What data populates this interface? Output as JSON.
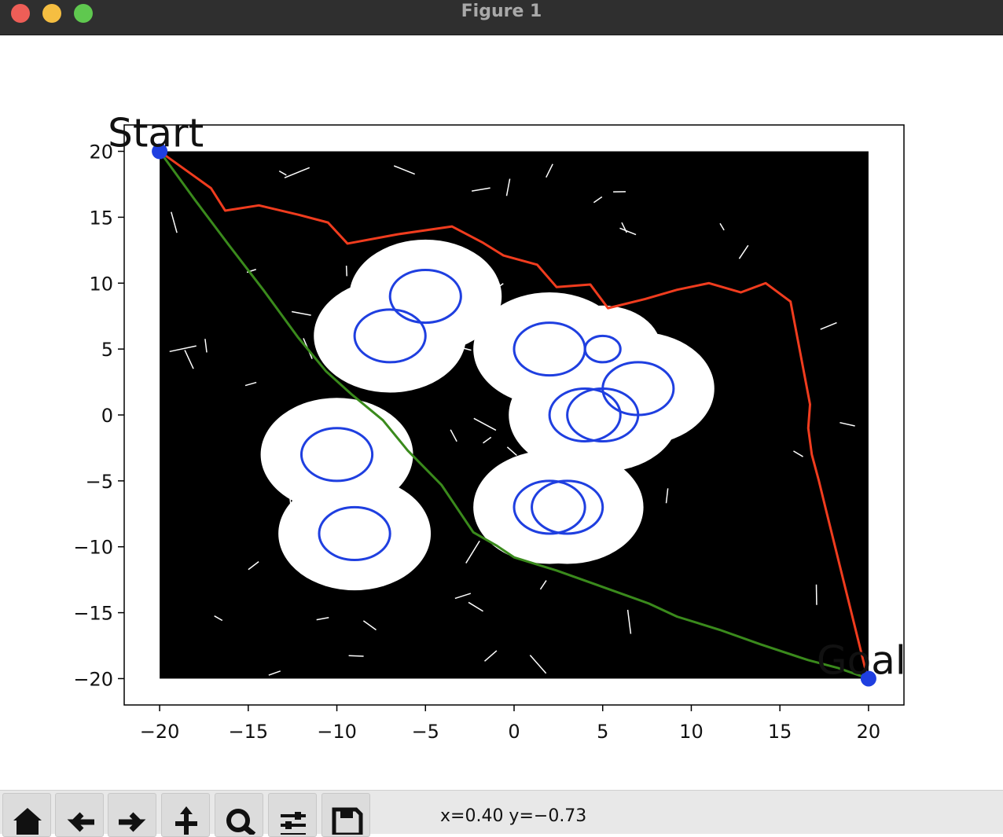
{
  "window": {
    "title": "Figure 1"
  },
  "toolbar": {
    "buttons": [
      {
        "name": "home-button",
        "icon": "home-icon"
      },
      {
        "name": "back-button",
        "icon": "arrow-left-icon"
      },
      {
        "name": "forward-button",
        "icon": "arrow-right-icon"
      },
      {
        "name": "pan-button",
        "icon": "move-icon"
      },
      {
        "name": "zoom-button",
        "icon": "magnifier-icon"
      },
      {
        "name": "configure-subplots-button",
        "icon": "sliders-icon"
      },
      {
        "name": "save-button",
        "icon": "floppy-disk-icon"
      }
    ],
    "coords": "x=0.40 y=−0.73"
  },
  "chart_data": {
    "type": "line",
    "xlim": [
      -22,
      22
    ],
    "ylim": [
      -22,
      22
    ],
    "xticks": [
      -20,
      -15,
      -10,
      -5,
      0,
      5,
      10,
      15,
      20
    ],
    "yticks": [
      -20,
      -15,
      -10,
      -5,
      0,
      5,
      10,
      15,
      20
    ],
    "xtick_labels": [
      "−20",
      "−15",
      "−10",
      "−5",
      "0",
      "5",
      "10",
      "15",
      "20"
    ],
    "ytick_labels": [
      "−20",
      "−15",
      "−10",
      "−5",
      "0",
      "5",
      "10",
      "15",
      "20"
    ],
    "grid": false,
    "annotations": [
      {
        "text": "Start",
        "x": -20,
        "y": 20
      },
      {
        "text": "Goal",
        "x": 20,
        "y": -20
      }
    ],
    "start": {
      "x": -20,
      "y": 20
    },
    "goal": {
      "x": 20,
      "y": -20
    },
    "tree_color": "#000000",
    "obstacles": {
      "color": "#1f3fe0",
      "circles": [
        {
          "x": -5,
          "y": 9,
          "r": 2
        },
        {
          "x": -7,
          "y": 6,
          "r": 2
        },
        {
          "x": 2,
          "y": 5,
          "r": 2
        },
        {
          "x": 5,
          "y": 5,
          "r": 1
        },
        {
          "x": 7,
          "y": 2,
          "r": 2
        },
        {
          "x": 4,
          "y": 0,
          "r": 2
        },
        {
          "x": 5,
          "y": 0,
          "r": 2
        },
        {
          "x": -10,
          "y": -3,
          "r": 2
        },
        {
          "x": -9,
          "y": -9,
          "r": 2
        },
        {
          "x": 2,
          "y": -7,
          "r": 2
        },
        {
          "x": 3,
          "y": -7,
          "r": 2
        }
      ]
    },
    "series": [
      {
        "color": "#f03c1e",
        "x": [
          -20,
          -17.1,
          -16.3,
          -14.4,
          -12.2,
          -10.5,
          -9.4,
          -6.6,
          -3.5,
          -1.8,
          -0.6,
          1.3,
          2.4,
          4.3,
          5.3,
          7.4,
          9.2,
          11.0,
          12.8,
          14.2,
          15.6,
          16.7,
          16.6,
          16.8,
          17.2,
          17.6,
          19.9
        ],
        "y": [
          20,
          17.2,
          15.5,
          15.9,
          15.2,
          14.6,
          13.0,
          13.7,
          14.3,
          13.1,
          12.1,
          11.4,
          9.7,
          9.9,
          8.1,
          8.8,
          9.5,
          10.0,
          9.3,
          10.0,
          8.6,
          0.8,
          -1.0,
          -3.0,
          -5.0,
          -7.2,
          -19.7
        ]
      },
      {
        "color": "#3a8a1c",
        "x": [
          -20,
          -18.0,
          -16.1,
          -14.1,
          -12.2,
          -10.6,
          -9.2,
          -7.4,
          -6.0,
          -4.1,
          -2.3,
          -1.0,
          0.0,
          2.4,
          4.9,
          7.6,
          9.2,
          11.6,
          13.9,
          16.6,
          18.3,
          20
        ],
        "y": [
          20,
          16.3,
          12.9,
          9.4,
          5.9,
          3.3,
          1.6,
          -0.4,
          -2.7,
          -5.3,
          -8.9,
          -9.9,
          -10.8,
          -11.8,
          -13.0,
          -14.3,
          -15.3,
          -16.3,
          -17.4,
          -18.6,
          -19.2,
          -20
        ]
      }
    ]
  }
}
